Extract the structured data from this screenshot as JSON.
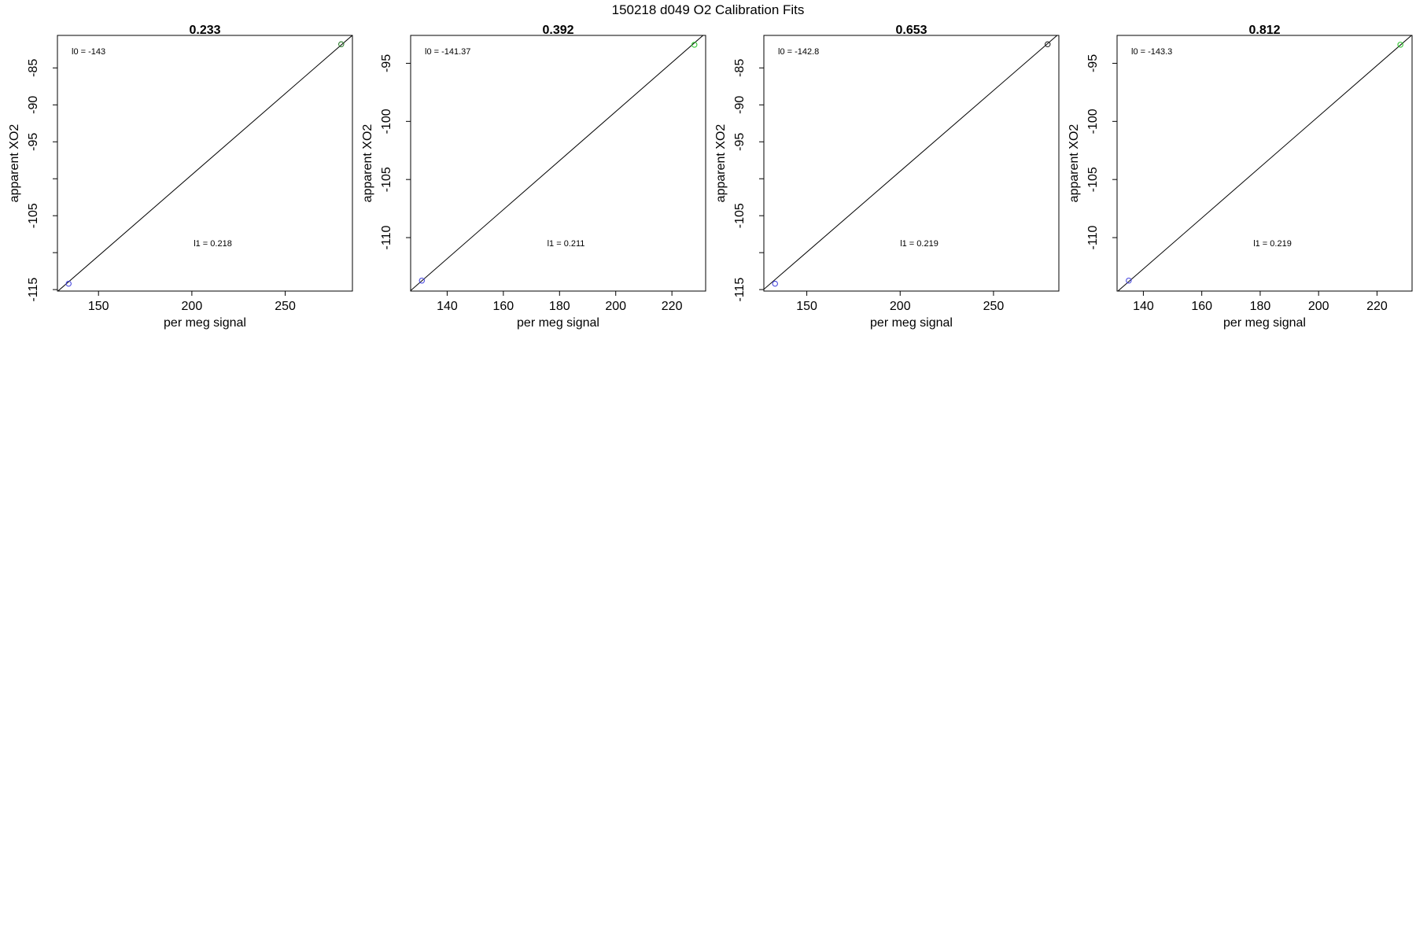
{
  "page": {
    "title": "150218   d049   O2 Calibration Fits",
    "colors": {
      "ink": "#000000",
      "point_blue": "#4b4be0",
      "point_green": "#34c834",
      "point_black": "#2a2a2a"
    }
  },
  "chart_data": [
    {
      "type": "scatter",
      "title": "0.233",
      "xlabel": "per meg signal",
      "ylabel": "apparent XO2",
      "xlim": [
        128,
        286
      ],
      "ylim": [
        -115.2,
        -80.6
      ],
      "xticks": [
        150,
        200,
        250
      ],
      "yticks": [
        -115,
        -105,
        -95,
        -90,
        -85
      ],
      "yticks_minor": [
        -110,
        -100
      ],
      "annotation_l0": "l0 =  -143",
      "annotation_l1": "l1 =  0.218",
      "points": [
        {
          "x": 134,
          "y": -114.2,
          "color": "#4b4be0"
        },
        {
          "x": 280,
          "y": -81.8,
          "color": "#2a7a2a"
        }
      ],
      "fit_line": {
        "x": [
          126,
          290
        ],
        "y": [
          -115.7,
          -79.7
        ]
      }
    },
    {
      "type": "scatter",
      "title": "0.392",
      "xlabel": "per meg signal",
      "ylabel": "apparent XO2",
      "xlim": [
        127,
        232
      ],
      "ylim": [
        -114.6,
        -92.6
      ],
      "xticks": [
        140,
        160,
        180,
        200,
        220
      ],
      "yticks": [
        -110,
        -105,
        -100,
        -95
      ],
      "yticks_minor": [],
      "annotation_l0": "l0 =  -141.37",
      "annotation_l1": "l1 =  0.211",
      "points": [
        {
          "x": 131,
          "y": -113.7,
          "color": "#4b4be0"
        },
        {
          "x": 228,
          "y": -93.4,
          "color": "#34c834"
        }
      ],
      "fit_line": {
        "x": [
          125,
          235
        ],
        "y": [
          -114.98,
          -91.77
        ]
      }
    },
    {
      "type": "scatter",
      "title": "0.653",
      "xlabel": "per meg signal",
      "ylabel": "apparent XO2",
      "xlim": [
        127,
        285
      ],
      "ylim": [
        -115.2,
        -80.6
      ],
      "xticks": [
        150,
        200,
        250
      ],
      "yticks": [
        -115,
        -105,
        -95,
        -90,
        -85
      ],
      "yticks_minor": [
        -110,
        -100
      ],
      "annotation_l0": "l0 =  -142.8",
      "annotation_l1": "l1 =  0.219",
      "points": [
        {
          "x": 133,
          "y": -114.2,
          "color": "#4b4be0"
        },
        {
          "x": 279,
          "y": -81.8,
          "color": "#2a2a2a"
        }
      ],
      "fit_line": {
        "x": [
          125,
          290
        ],
        "y": [
          -115.4,
          -79.3
        ]
      }
    },
    {
      "type": "scatter",
      "title": "0.812",
      "xlabel": "per meg signal",
      "ylabel": "apparent XO2",
      "xlim": [
        131,
        232
      ],
      "ylim": [
        -114.6,
        -92.6
      ],
      "xticks": [
        140,
        160,
        180,
        200,
        220
      ],
      "yticks": [
        -110,
        -105,
        -100,
        -95
      ],
      "yticks_minor": [],
      "annotation_l0": "l0 =  -143.3",
      "annotation_l1": "l1 =  0.219",
      "points": [
        {
          "x": 135,
          "y": -113.7,
          "color": "#4b4be0"
        },
        {
          "x": 228,
          "y": -93.4,
          "color": "#34c834"
        }
      ],
      "fit_line": {
        "x": [
          129,
          235
        ],
        "y": [
          -115.1,
          -91.9
        ]
      }
    }
  ]
}
